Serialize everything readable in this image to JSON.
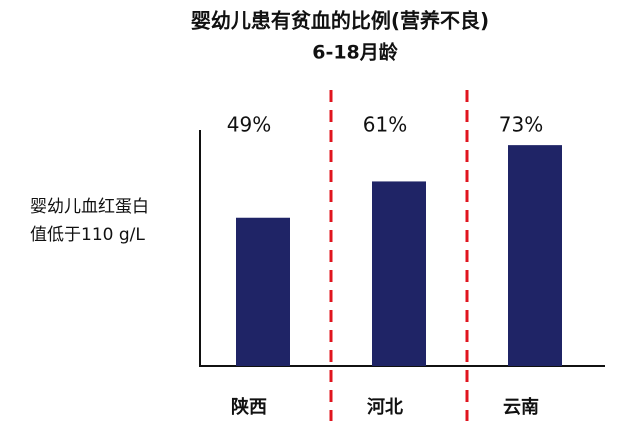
{
  "chart_data": {
    "type": "bar",
    "title": "婴幼儿患有贫血的比例(营养不良)",
    "subtitle": "6-18月龄",
    "ylabel": [
      "婴幼儿血红蛋白",
      "值低于110 g/L"
    ],
    "categories": [
      "陕西",
      "河北",
      "云南"
    ],
    "values": [
      49,
      61,
      73
    ],
    "value_labels": [
      "49%",
      "61%",
      "73%"
    ],
    "color": "#1f2466",
    "ylim": [
      0,
      78
    ],
    "separator_color": "#e0141e"
  }
}
